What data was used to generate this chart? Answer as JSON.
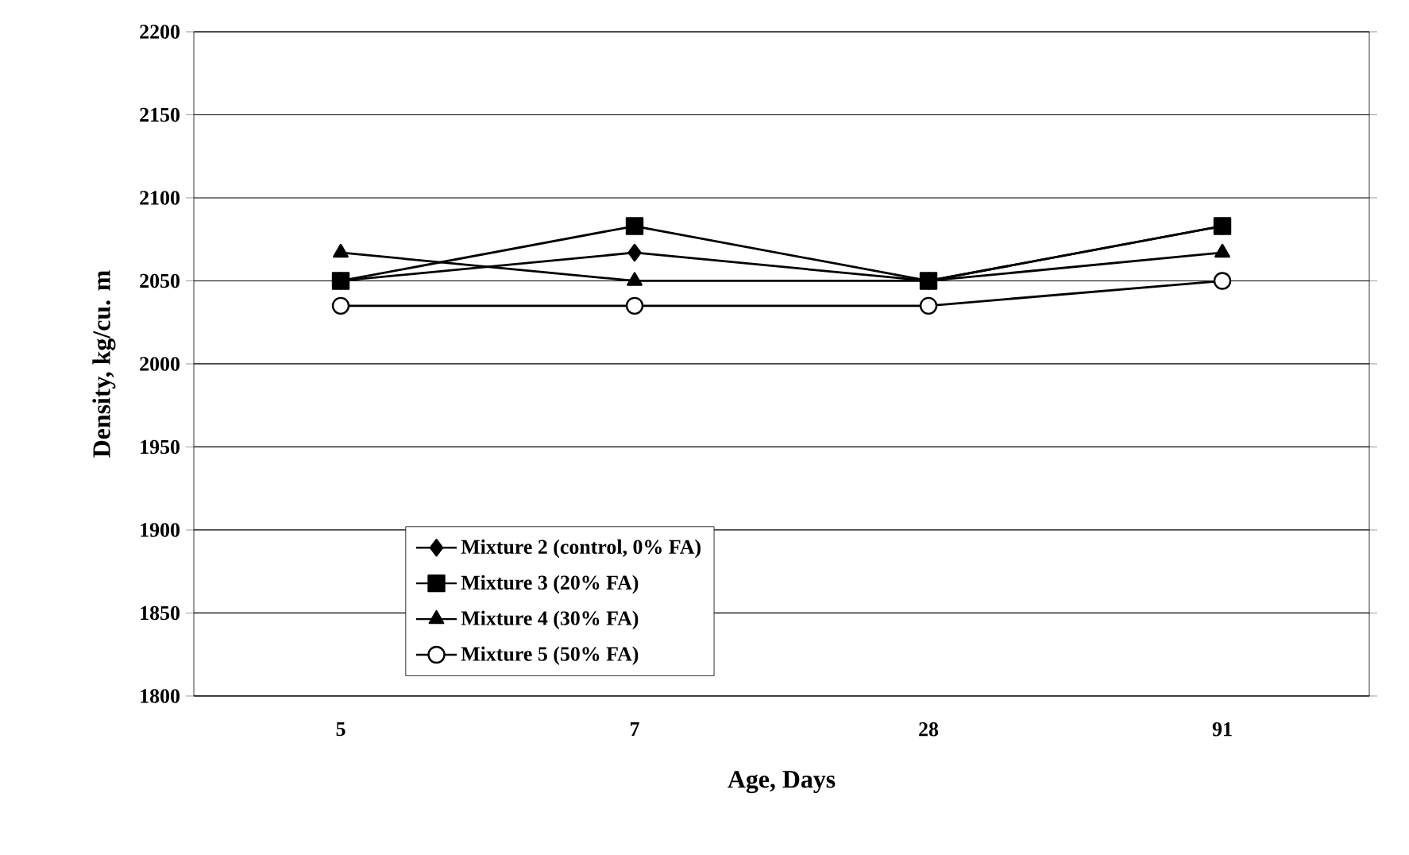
{
  "chart_data": {
    "type": "line",
    "xlabel": "Age, Days",
    "ylabel": "Density, kg/cu. m",
    "categories": [
      "5",
      "7",
      "28",
      "91"
    ],
    "series": [
      {
        "name": "Mixture 2 (control, 0% FA)",
        "color": "#000000",
        "marker": "diamond",
        "values": [
          2050,
          2067,
          2050,
          2083
        ]
      },
      {
        "name": "Mixture 3 (20% FA)",
        "color": "#000000",
        "marker": "square",
        "values": [
          2050,
          2083,
          2050,
          2083
        ]
      },
      {
        "name": "Mixture 4 (30% FA)",
        "color": "#000000",
        "marker": "triangle",
        "values": [
          2067,
          2050,
          2050,
          2067
        ]
      },
      {
        "name": "Mixture 5 (50% FA)",
        "color": "#000000",
        "marker": "circle",
        "values": [
          2035,
          2035,
          2035,
          2050
        ]
      }
    ],
    "ylim": [
      1800,
      2200
    ],
    "yticks": [
      1800,
      1850,
      1900,
      1950,
      2000,
      2050,
      2100,
      2150,
      2200
    ],
    "grid": "y",
    "legend": "bottom",
    "line_style": "solid"
  }
}
